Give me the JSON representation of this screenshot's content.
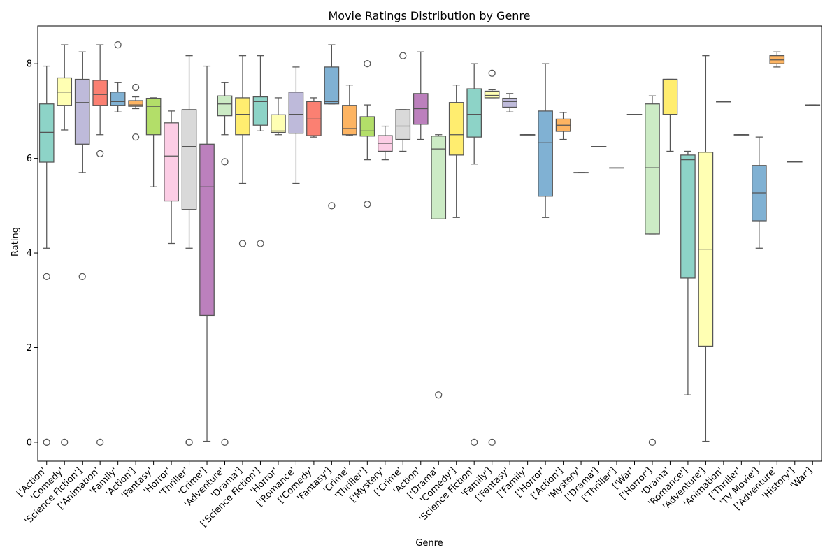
{
  "chart_data": {
    "type": "box",
    "title": "Movie Ratings Distribution by Genre",
    "xlabel": "Genre",
    "ylabel": "Rating",
    "ylim": [
      -0.4,
      8.8
    ],
    "yticks": [
      0,
      2,
      4,
      6,
      8
    ],
    "grid": false,
    "legend": "none",
    "outlier_marker": "open-circle",
    "box_edge_color": "#555555",
    "categories": [
      "['Action'",
      "'Comedy'",
      "'Science Fiction']",
      "['Animation'",
      "'Family'",
      "'Action']",
      "'Fantasy'",
      "'Horror'",
      "'Thriller'",
      "'Crime']",
      "'Adventure'",
      "'Drama']",
      "['Science Fiction']",
      "'Horror'",
      "['Romance'",
      "['Comedy'",
      "'Fantasy']",
      "'Crime'",
      "'Thriller']",
      "['Mystery'",
      "['Crime'",
      "'Action'",
      "['Drama'",
      "'Comedy']",
      "'Science Fiction'",
      "'Family']",
      "['Fantasy'",
      "['Family'",
      "['Horror'",
      "['Action']",
      "'Mystery'",
      "['Drama']",
      "['Thriller']",
      "['War'",
      "['Horror']",
      "'Drama'",
      "'Romance']",
      "'Adventure']",
      "'Animation'",
      "['Thriller'",
      "'TV Movie']",
      "['Adventure'",
      "'History']",
      "'War']"
    ],
    "boxes": [
      {
        "min": 4.1,
        "q1": 5.92,
        "median": 6.55,
        "q3": 7.15,
        "max": 7.95,
        "outliers": [
          3.5,
          0.0,
          0.0
        ],
        "color": "#8dd3c7"
      },
      {
        "min": 6.6,
        "q1": 7.12,
        "median": 7.4,
        "q3": 7.7,
        "max": 8.4,
        "outliers": [
          0.0
        ],
        "color": "#ffffb3"
      },
      {
        "min": 5.7,
        "q1": 6.3,
        "median": 7.18,
        "q3": 7.67,
        "max": 8.25,
        "outliers": [
          3.5
        ],
        "color": "#bebada"
      },
      {
        "min": 6.5,
        "q1": 7.12,
        "median": 7.35,
        "q3": 7.65,
        "max": 8.4,
        "outliers": [
          6.1,
          0.0
        ],
        "color": "#fb8072"
      },
      {
        "min": 6.98,
        "q1": 7.12,
        "median": 7.2,
        "q3": 7.4,
        "max": 7.6,
        "outliers": [
          8.4
        ],
        "color": "#80b1d3"
      },
      {
        "min": 7.05,
        "q1": 7.1,
        "median": 7.13,
        "q3": 7.22,
        "max": 7.3,
        "outliers": [
          7.5,
          6.45
        ],
        "color": "#fdb462"
      },
      {
        "min": 5.4,
        "q1": 6.5,
        "median": 7.1,
        "q3": 7.27,
        "max": 7.28,
        "outliers": [],
        "color": "#b3de69"
      },
      {
        "min": 4.2,
        "q1": 5.1,
        "median": 6.05,
        "q3": 6.75,
        "max": 7.0,
        "outliers": [],
        "color": "#fccde5"
      },
      {
        "min": 4.1,
        "q1": 4.92,
        "median": 6.25,
        "q3": 7.03,
        "max": 8.17,
        "outliers": [
          0.0,
          0.0
        ],
        "color": "#d9d9d9"
      },
      {
        "min": 0.02,
        "q1": 2.68,
        "median": 5.4,
        "q3": 6.3,
        "max": 7.95,
        "outliers": [],
        "color": "#bc80bd"
      },
      {
        "min": 6.5,
        "q1": 6.9,
        "median": 7.15,
        "q3": 7.32,
        "max": 7.6,
        "outliers": [
          5.93,
          0.0
        ],
        "color": "#ccebc5"
      },
      {
        "min": 5.47,
        "q1": 6.5,
        "median": 6.93,
        "q3": 7.28,
        "max": 8.17,
        "outliers": [
          4.2
        ],
        "color": "#ffed6f"
      },
      {
        "min": 6.58,
        "q1": 6.7,
        "median": 7.2,
        "q3": 7.3,
        "max": 8.17,
        "outliers": [
          4.2
        ],
        "color": "#8dd3c7"
      },
      {
        "min": 6.5,
        "q1": 6.55,
        "median": 6.58,
        "q3": 6.92,
        "max": 7.28,
        "outliers": [],
        "color": "#ffffb3"
      },
      {
        "min": 5.47,
        "q1": 6.53,
        "median": 6.93,
        "q3": 7.4,
        "max": 7.93,
        "outliers": [],
        "color": "#bebada"
      },
      {
        "min": 6.45,
        "q1": 6.48,
        "median": 6.83,
        "q3": 7.2,
        "max": 7.28,
        "outliers": [],
        "color": "#fb8072"
      },
      {
        "min": 7.15,
        "q1": 7.15,
        "median": 7.2,
        "q3": 7.93,
        "max": 8.4,
        "outliers": [
          5.0
        ],
        "color": "#80b1d3"
      },
      {
        "min": 6.48,
        "q1": 6.5,
        "median": 6.63,
        "q3": 7.12,
        "max": 7.55,
        "outliers": [],
        "color": "#fdb462"
      },
      {
        "min": 5.97,
        "q1": 6.47,
        "median": 6.58,
        "q3": 6.88,
        "max": 7.13,
        "outliers": [
          8.0,
          5.03
        ],
        "color": "#b3de69"
      },
      {
        "min": 5.97,
        "q1": 6.15,
        "median": 6.32,
        "q3": 6.48,
        "max": 6.68,
        "outliers": [],
        "color": "#fccde5"
      },
      {
        "min": 6.15,
        "q1": 6.4,
        "median": 6.68,
        "q3": 7.03,
        "max": 7.03,
        "outliers": [
          8.17
        ],
        "color": "#d9d9d9"
      },
      {
        "min": 6.4,
        "q1": 6.72,
        "median": 7.05,
        "q3": 7.37,
        "max": 8.25,
        "outliers": [],
        "color": "#bc80bd"
      },
      {
        "min": 4.72,
        "q1": 4.72,
        "median": 6.2,
        "q3": 6.47,
        "max": 6.5,
        "outliers": [
          1.0
        ],
        "color": "#ccebc5"
      },
      {
        "min": 4.75,
        "q1": 6.07,
        "median": 6.5,
        "q3": 7.18,
        "max": 7.55,
        "outliers": [],
        "color": "#ffed6f"
      },
      {
        "min": 5.88,
        "q1": 6.45,
        "median": 6.93,
        "q3": 7.47,
        "max": 8.0,
        "outliers": [
          0.0
        ],
        "color": "#8dd3c7"
      },
      {
        "min": 7.28,
        "q1": 7.28,
        "median": 7.33,
        "q3": 7.42,
        "max": 7.45,
        "outliers": [
          7.8,
          0.0
        ],
        "color": "#ffffb3"
      },
      {
        "min": 6.98,
        "q1": 7.08,
        "median": 7.2,
        "q3": 7.27,
        "max": 7.37,
        "outliers": [],
        "color": "#bebada"
      },
      {
        "min": 6.5,
        "q1": 6.5,
        "median": 6.5,
        "q3": 6.5,
        "max": 6.5,
        "outliers": [],
        "color": "#fb8072"
      },
      {
        "min": 4.75,
        "q1": 5.2,
        "median": 6.33,
        "q3": 7.0,
        "max": 8.0,
        "outliers": [],
        "color": "#80b1d3"
      },
      {
        "min": 6.4,
        "q1": 6.57,
        "median": 6.7,
        "q3": 6.83,
        "max": 6.97,
        "outliers": [],
        "color": "#fdb462"
      },
      {
        "min": 5.7,
        "q1": 5.7,
        "median": 5.7,
        "q3": 5.7,
        "max": 5.7,
        "outliers": [],
        "color": "#b3de69"
      },
      {
        "min": 6.25,
        "q1": 6.25,
        "median": 6.25,
        "q3": 6.25,
        "max": 6.25,
        "outliers": [],
        "color": "#fccde5"
      },
      {
        "min": 5.8,
        "q1": 5.8,
        "median": 5.8,
        "q3": 5.8,
        "max": 5.8,
        "outliers": [],
        "color": "#d9d9d9"
      },
      {
        "min": 6.93,
        "q1": 6.93,
        "median": 6.93,
        "q3": 6.93,
        "max": 6.93,
        "outliers": [],
        "color": "#bc80bd"
      },
      {
        "min": 4.4,
        "q1": 4.4,
        "median": 5.8,
        "q3": 7.15,
        "max": 7.32,
        "outliers": [
          0.0
        ],
        "color": "#ccebc5"
      },
      {
        "min": 6.15,
        "q1": 6.93,
        "median": 7.67,
        "q3": 7.67,
        "max": 7.67,
        "outliers": [],
        "color": "#ffed6f"
      },
      {
        "min": 1.0,
        "q1": 3.47,
        "median": 5.97,
        "q3": 6.07,
        "max": 6.15,
        "outliers": [],
        "color": "#8dd3c7"
      },
      {
        "min": 0.02,
        "q1": 2.03,
        "median": 4.08,
        "q3": 6.13,
        "max": 8.17,
        "outliers": [],
        "color": "#ffffb3"
      },
      {
        "min": 7.2,
        "q1": 7.2,
        "median": 7.2,
        "q3": 7.2,
        "max": 7.2,
        "outliers": [],
        "color": "#bebada"
      },
      {
        "min": 6.5,
        "q1": 6.5,
        "median": 6.5,
        "q3": 6.5,
        "max": 6.5,
        "outliers": [],
        "color": "#fb8072"
      },
      {
        "min": 4.1,
        "q1": 4.68,
        "median": 5.27,
        "q3": 5.85,
        "max": 6.45,
        "outliers": [],
        "color": "#80b1d3"
      },
      {
        "min": 7.93,
        "q1": 8.0,
        "median": 8.08,
        "q3": 8.17,
        "max": 8.25,
        "outliers": [],
        "color": "#fdb462"
      },
      {
        "min": 5.93,
        "q1": 5.93,
        "median": 5.93,
        "q3": 5.93,
        "max": 5.93,
        "outliers": [],
        "color": "#b3de69"
      },
      {
        "min": 7.13,
        "q1": 7.13,
        "median": 7.13,
        "q3": 7.13,
        "max": 7.13,
        "outliers": [],
        "color": "#fccde5"
      }
    ]
  }
}
